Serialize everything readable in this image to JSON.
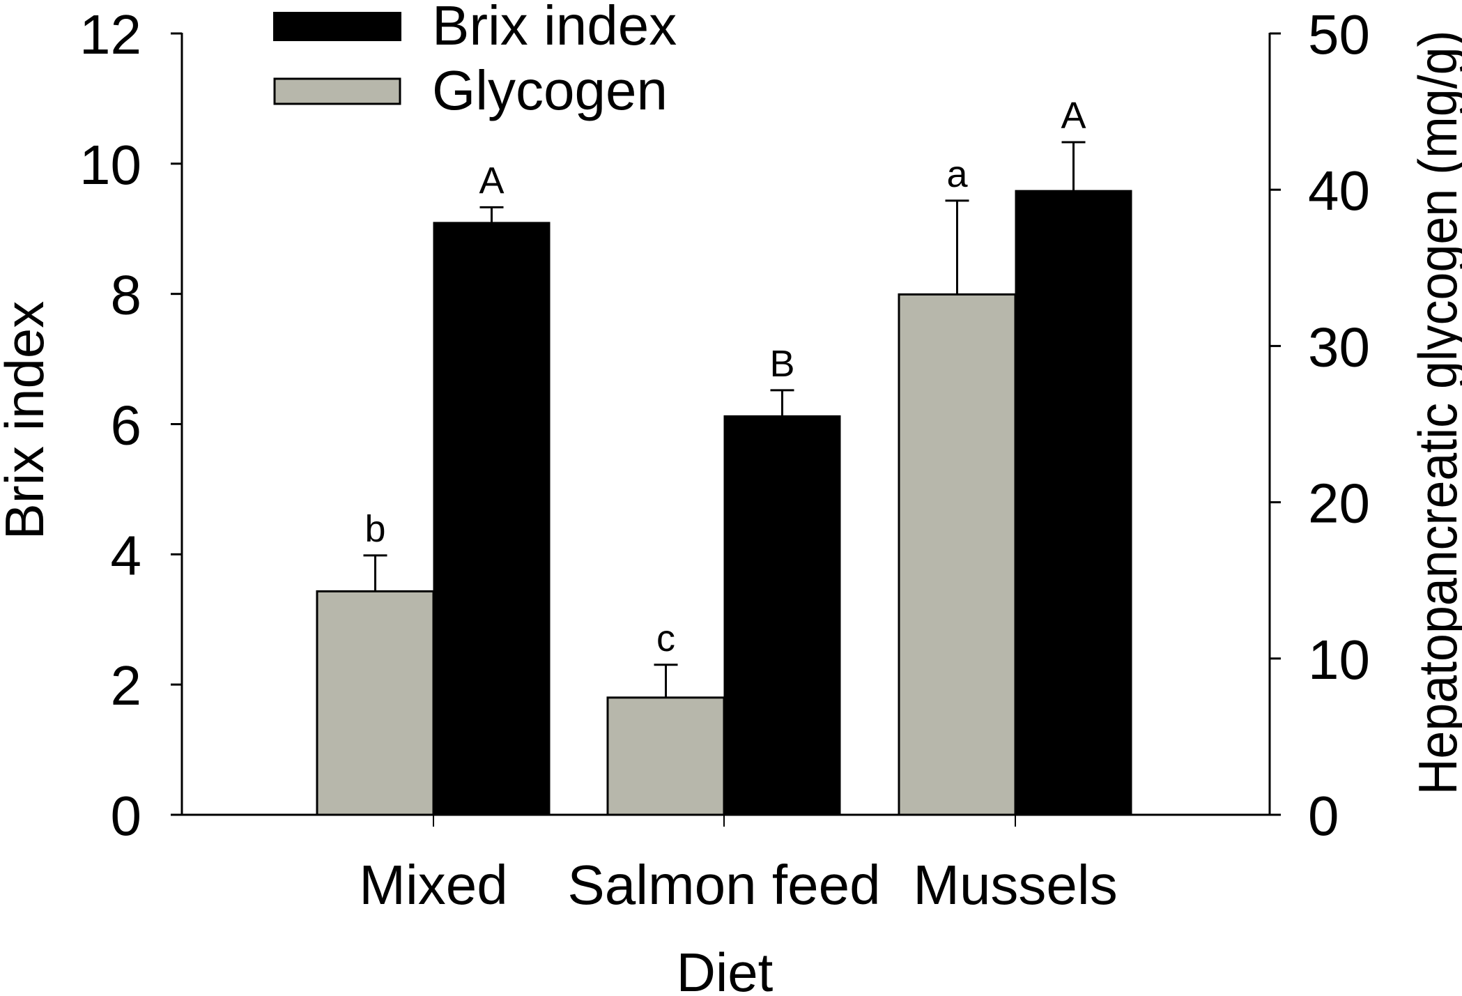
{
  "chart_data": {
    "type": "bar",
    "title": "",
    "xlabel": "Diet",
    "ylabel": "Brix index",
    "ylabel_right": "Hepatopancreatic glycogen (mg/g)",
    "categories": [
      "Mixed",
      "Salmon feed",
      "Mussels"
    ],
    "ylim": [
      0,
      12
    ],
    "ylim_right": [
      0,
      50
    ],
    "yticks": [
      "0",
      "2",
      "4",
      "6",
      "8",
      "10",
      "12"
    ],
    "yticks_right": [
      "0",
      "10",
      "20",
      "30",
      "40",
      "50"
    ],
    "grid": false,
    "legend_position": "top-left",
    "series": [
      {
        "name": "Glycogen",
        "axis": "right",
        "color": "#b7b7ab",
        "values": [
          14.3,
          7.5,
          33.3
        ],
        "error_plus": [
          2.3,
          2.1,
          6.0
        ],
        "significance": [
          "b",
          "c",
          "a"
        ]
      },
      {
        "name": "Brix index",
        "axis": "left",
        "color": "#000000",
        "values": [
          9.1,
          6.13,
          9.59
        ],
        "error_plus": [
          0.23,
          0.39,
          0.74
        ],
        "significance": [
          "A",
          "B",
          "A"
        ]
      }
    ]
  },
  "legend": {
    "items": [
      {
        "label": "Brix index",
        "color": "#000000"
      },
      {
        "label": "Glycogen",
        "color": "#b7b7ab"
      }
    ]
  },
  "axes": {
    "left_title": "Brix index",
    "right_title": "Hepatopancreatic glycogen (mg/g)",
    "x_title": "Diet"
  }
}
